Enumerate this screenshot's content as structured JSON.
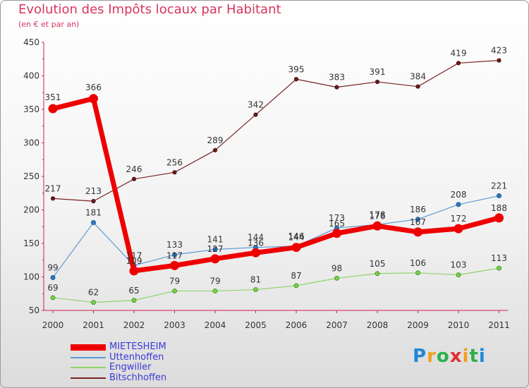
{
  "chart_data": {
    "type": "line",
    "title": "Evolution des Impôts locaux par Habitant",
    "subtitle": "(en € et par an)",
    "x": [
      "2000",
      "2001",
      "2002",
      "2003",
      "2004",
      "2005",
      "2006",
      "2007",
      "2008",
      "2009",
      "2010",
      "2011"
    ],
    "ylim": [
      50,
      450
    ],
    "yticks": [
      50,
      100,
      150,
      200,
      250,
      300,
      350,
      400,
      450
    ],
    "grid": false,
    "legend_position": "bottom-left",
    "series": [
      {
        "name": "MIETESHEIM",
        "color": "#ee0000",
        "values": [
          351,
          366,
          109,
          117,
          127,
          136,
          144,
          165,
          176,
          167,
          172,
          188
        ],
        "labels_at": [
          0,
          1,
          2,
          3,
          4,
          5,
          6,
          7,
          8,
          9,
          10,
          11
        ]
      },
      {
        "name": "Uttenhoffen",
        "color": "#5b9bd5",
        "values": [
          99,
          181,
          117,
          133,
          141,
          144,
          146,
          173,
          178,
          186,
          208,
          221
        ]
      },
      {
        "name": "Engwiller",
        "color": "#8fd36a",
        "values": [
          69,
          62,
          65,
          79,
          79,
          81,
          87,
          98,
          105,
          106,
          103,
          113
        ]
      },
      {
        "name": "Bitschhoffen",
        "color": "#7a2424",
        "values": [
          217,
          213,
          246,
          256,
          289,
          342,
          395,
          383,
          391,
          384,
          419,
          423
        ]
      }
    ]
  },
  "logo": {
    "letters": [
      "P",
      "r",
      "o",
      "x",
      "i",
      "t",
      "i"
    ],
    "colors": [
      "#1e88d8",
      "#f0a020",
      "#2cb04a",
      "#e03030",
      "#f0a020",
      "#2cb04a",
      "#1e88d8"
    ]
  }
}
